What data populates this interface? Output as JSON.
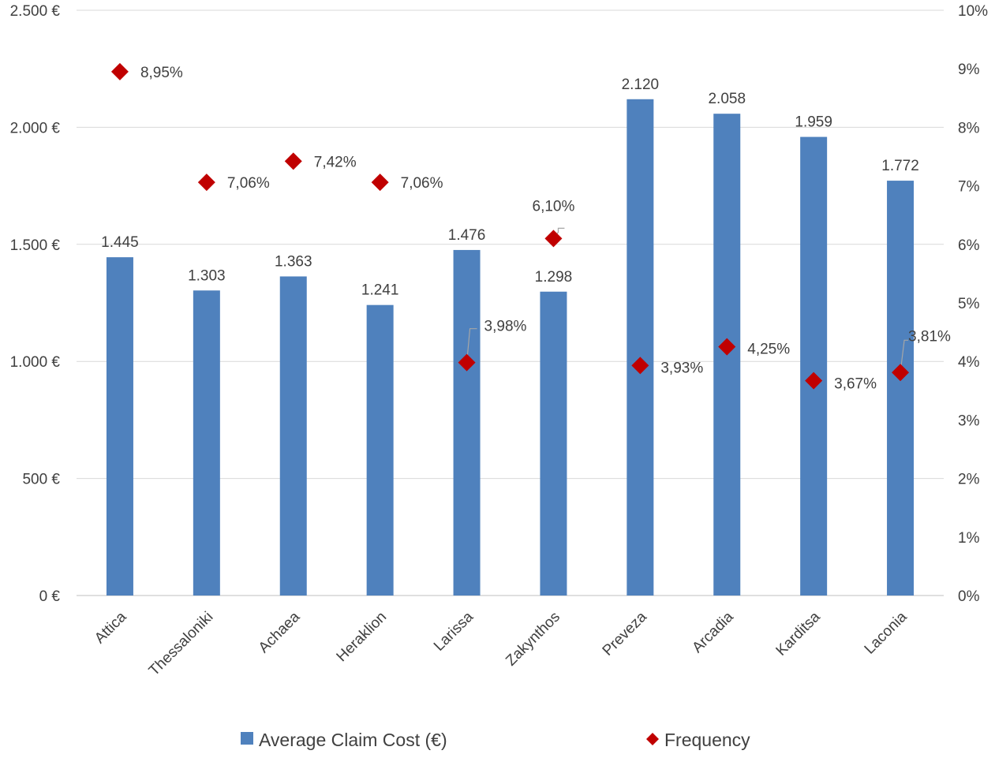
{
  "chart_data": {
    "type": "bar",
    "categories": [
      "Attica",
      "Thessaloniki",
      "Achaea",
      "Heraklion",
      "Larissa",
      "Zakynthos",
      "Preveza",
      "Arcadia",
      "Karditsa",
      "Laconia"
    ],
    "series": [
      {
        "name": "Average Claim Cost (€)",
        "type": "bar",
        "axis": "left",
        "color": "#4F81BD",
        "values": [
          1445,
          1303,
          1363,
          1241,
          1476,
          1298,
          2120,
          2058,
          1959,
          1772
        ],
        "labels": [
          "1.445",
          "1.303",
          "1.363",
          "1.241",
          "1.476",
          "1.298",
          "2.120",
          "2.058",
          "1.959",
          "1.772"
        ]
      },
      {
        "name": "Frequency",
        "type": "scatter",
        "marker": "diamond",
        "axis": "right",
        "color": "#C00000",
        "values": [
          8.95,
          7.06,
          7.42,
          7.06,
          3.98,
          6.1,
          3.93,
          4.25,
          3.67,
          3.81
        ],
        "labels": [
          "8,95%",
          "7,06%",
          "7,42%",
          "7,06%",
          "3,98%",
          "6,10%",
          "3,93%",
          "4,25%",
          "3,67%",
          "3,81%"
        ]
      }
    ],
    "y_left": {
      "min": 0,
      "max": 2500,
      "ticks": [
        0,
        500,
        1000,
        1500,
        2000,
        2500
      ],
      "tick_labels": [
        "0 €",
        "500 €",
        "1.000 €",
        "1.500 €",
        "2.000 €",
        "2.500 €"
      ]
    },
    "y_right": {
      "min": 0,
      "max": 10,
      "ticks": [
        0,
        1,
        2,
        3,
        4,
        5,
        6,
        7,
        8,
        9,
        10
      ],
      "tick_labels": [
        "0%",
        "1%",
        "2%",
        "3%",
        "4%",
        "5%",
        "6%",
        "7%",
        "8%",
        "9%",
        "10%"
      ]
    },
    "grid": true,
    "legend_position": "bottom",
    "xlabel": "",
    "ylabel": "",
    "title": ""
  },
  "legend": {
    "items": [
      {
        "label": "Average Claim Cost (€)",
        "icon": "square",
        "color": "#4F81BD"
      },
      {
        "label": "Frequency",
        "icon": "diamond",
        "color": "#C00000"
      }
    ]
  }
}
